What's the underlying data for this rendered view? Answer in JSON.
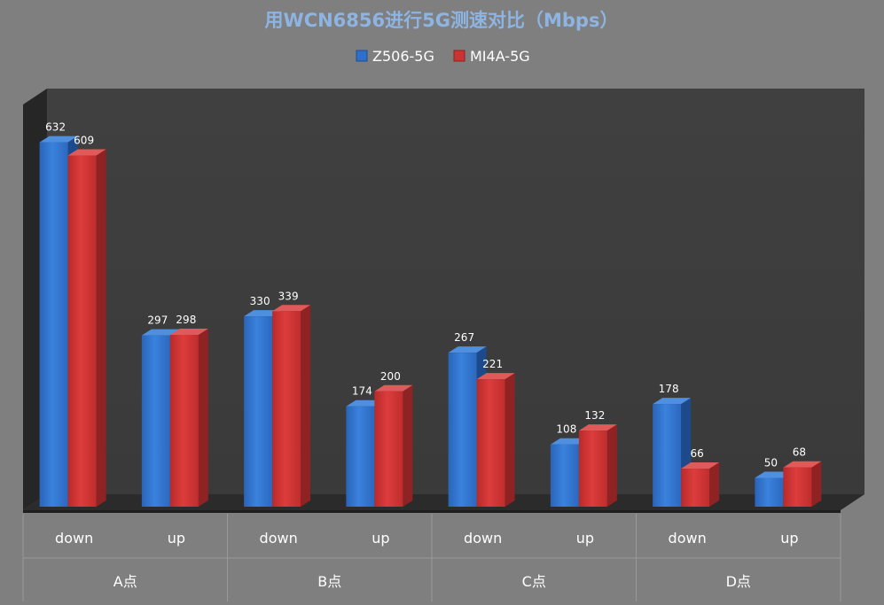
{
  "chart_data": {
    "type": "bar",
    "title": "用WCN6856进行5G测速对比（Mbps）",
    "xlabel": "",
    "ylabel": "",
    "groups": [
      "A点",
      "B点",
      "C点",
      "D点"
    ],
    "categories": [
      "down",
      "up",
      "down",
      "up",
      "down",
      "up",
      "down",
      "up"
    ],
    "series": [
      {
        "name": "Z506-5G",
        "values": [
          632,
          297,
          330,
          174,
          267,
          108,
          178,
          50
        ]
      },
      {
        "name": "MI4A-5G",
        "values": [
          609,
          298,
          339,
          200,
          221,
          132,
          66,
          68
        ]
      }
    ],
    "ylim": [
      0,
      700
    ],
    "grid": false,
    "legend_position": "top",
    "style": "3d-clustered-column",
    "colors": {
      "background": "#7f7f7f",
      "back_wall": "#3f3f3f",
      "side_wall": "#262626",
      "floor": "#2e2e2e",
      "title": "#8db4e2",
      "text": "#ffffff",
      "series_1": "#2f6fc9",
      "series_2": "#cc3333"
    }
  }
}
